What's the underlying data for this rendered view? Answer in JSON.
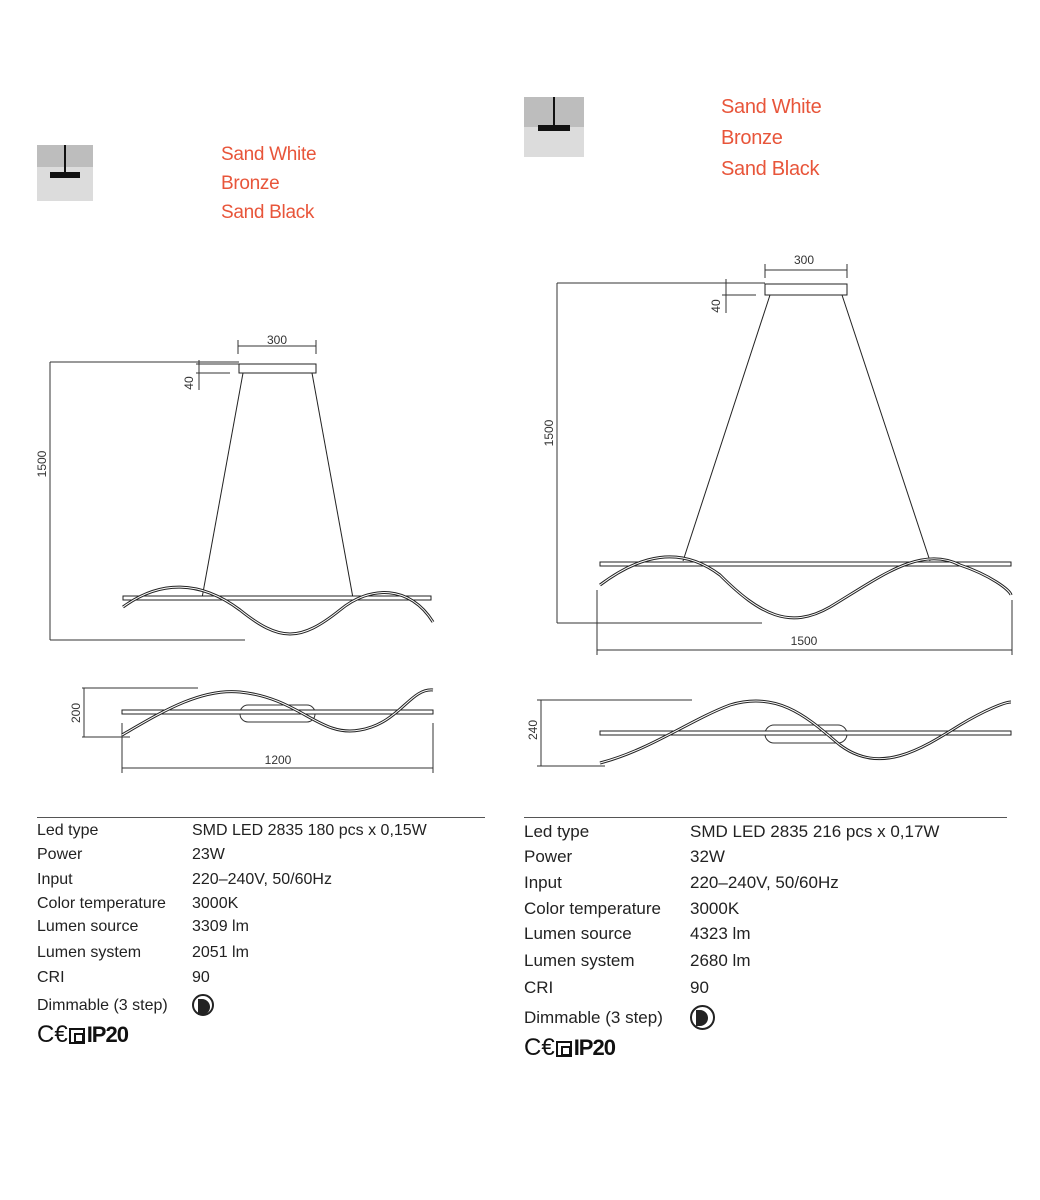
{
  "left": {
    "colors": [
      "Sand White",
      "Bronze",
      "Sand Black"
    ],
    "dims": {
      "canopy": "300",
      "canopy_height": "40",
      "height": "1500",
      "depth": "200",
      "length": "1200"
    },
    "specs": [
      {
        "label": "Led type",
        "value": "SMD LED 2835 180 pcs x 0,15W"
      },
      {
        "label": "Power",
        "value": "23W"
      },
      {
        "label": "Input",
        "value": "220–240V, 50/60Hz"
      },
      {
        "label": "Color temperature",
        "value": "3000K"
      },
      {
        "label": "Lumen source",
        "value": "3309 lm"
      },
      {
        "label": "Lumen system",
        "value": "2051 lm"
      },
      {
        "label": "CRI",
        "value": "90"
      },
      {
        "label": "Dimmable (3 step)",
        "value": ""
      }
    ],
    "rating": "IP20",
    "dimmable_icon": "dimmable-icon"
  },
  "right": {
    "colors": [
      "Sand White",
      "Bronze",
      "Sand Black"
    ],
    "dims": {
      "canopy": "300",
      "canopy_height": "40",
      "height": "1500",
      "width": "1500",
      "depth": "240"
    },
    "specs": [
      {
        "label": "Led type",
        "value": "SMD LED 2835 216 pcs x 0,17W"
      },
      {
        "label": "Power",
        "value": "32W"
      },
      {
        "label": "Input",
        "value": "220–240V, 50/60Hz"
      },
      {
        "label": "Color temperature",
        "value": "3000K"
      },
      {
        "label": "Lumen source",
        "value": "4323 lm"
      },
      {
        "label": "Lumen system",
        "value": "2680 lm"
      },
      {
        "label": "CRI",
        "value": "90"
      },
      {
        "label": "Dimmable (3 step)",
        "value": ""
      }
    ],
    "rating": "IP20",
    "dimmable_icon": "dimmable-icon"
  },
  "colors": {
    "accent": "#e8553a",
    "line": "#333333"
  }
}
